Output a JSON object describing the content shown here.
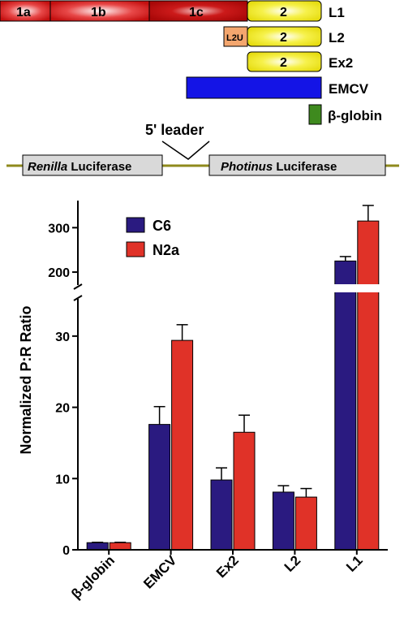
{
  "schematic": {
    "constructs": [
      {
        "name": "L1",
        "segments": [
          "1a",
          "1b",
          "1c",
          "2"
        ]
      },
      {
        "name": "L2",
        "segments": [
          "L2U",
          "2"
        ]
      },
      {
        "name": "Ex2",
        "segments": [
          "2"
        ]
      },
      {
        "name": "EMCV",
        "segments": []
      },
      {
        "name": "β-globin",
        "segments": []
      }
    ],
    "reporter": {
      "left_italic": "Renilla",
      "left_rest": " Luciferase",
      "middle": "5' leader",
      "right_italic": "Photinus",
      "right_rest": " Luciferase"
    },
    "colors": {
      "exon1": "#d42020",
      "exon2": "#f2ee1a",
      "l2u": "#f4a66e",
      "emcv": "#1414e6",
      "globin": "#3e8a1e",
      "line": "#8f8a1c",
      "luciferase": "#d9d9d9"
    }
  },
  "chart_data": {
    "type": "bar",
    "ylabel": "Normalized P:R Ratio",
    "categories": [
      "β-globin",
      "EMCV",
      "Ex2",
      "L2",
      "L1"
    ],
    "series": [
      {
        "name": "C6",
        "color": "#2a1a80",
        "values": [
          1.0,
          17.6,
          9.8,
          8.1,
          225
        ],
        "errors": [
          0.05,
          2.5,
          1.7,
          0.9,
          10
        ]
      },
      {
        "name": "N2a",
        "color": "#e03228",
        "values": [
          1.0,
          29.4,
          16.5,
          7.4,
          315
        ],
        "errors": [
          0.05,
          2.2,
          2.4,
          1.2,
          35
        ]
      }
    ],
    "axis_break": {
      "lower_range": [
        0,
        35
      ],
      "upper_range": [
        180,
        350
      ]
    },
    "yticks_lower": [
      0,
      10,
      20,
      30
    ],
    "yticks_upper": [
      200,
      300
    ],
    "legend_position": "top-left",
    "grid": false
  }
}
